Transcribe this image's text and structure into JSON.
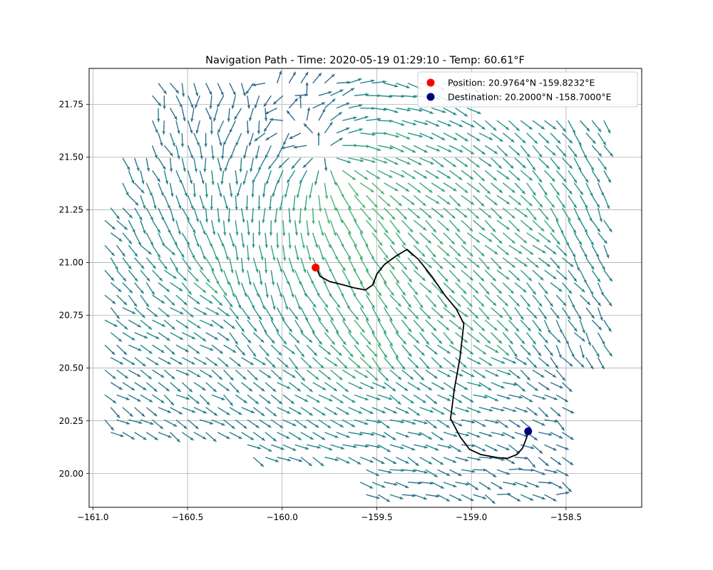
{
  "chart_data": {
    "type": "quiver",
    "title": "Navigation Path  - Time: 2020-05-19 01:29:10  - Temp: 60.61°F",
    "xlabel": "",
    "ylabel": "",
    "xlim": [
      -161.02,
      -158.1
    ],
    "ylim": [
      19.84,
      21.92
    ],
    "x_ticks": [
      {
        "value": -161.0,
        "label": "−161.0"
      },
      {
        "value": -160.5,
        "label": "−160.5"
      },
      {
        "value": -160.0,
        "label": "−160.0"
      },
      {
        "value": -159.5,
        "label": "−159.5"
      },
      {
        "value": -159.0,
        "label": "−159.0"
      },
      {
        "value": -158.5,
        "label": "−158.5"
      }
    ],
    "y_ticks": [
      {
        "value": 20.0,
        "label": "20.00"
      },
      {
        "value": 20.25,
        "label": "20.25"
      },
      {
        "value": 20.5,
        "label": "20.50"
      },
      {
        "value": 20.75,
        "label": "20.75"
      },
      {
        "value": 21.0,
        "label": "21.00"
      },
      {
        "value": 21.25,
        "label": "21.25"
      },
      {
        "value": 21.5,
        "label": "21.50"
      },
      {
        "value": 21.75,
        "label": "21.75"
      }
    ],
    "grid": true,
    "legend_position": "top-right",
    "colormap": "viridis",
    "path": {
      "color": "#000000",
      "points": [
        [
          -159.82,
          20.976
        ],
        [
          -159.8,
          20.935
        ],
        [
          -159.75,
          20.91
        ],
        [
          -159.68,
          20.895
        ],
        [
          -159.62,
          20.88
        ],
        [
          -159.56,
          20.87
        ],
        [
          -159.52,
          20.895
        ],
        [
          -159.5,
          20.945
        ],
        [
          -159.46,
          20.99
        ],
        [
          -159.4,
          21.03
        ],
        [
          -159.34,
          21.062
        ],
        [
          -159.28,
          21.015
        ],
        [
          -159.21,
          20.935
        ],
        [
          -159.14,
          20.845
        ],
        [
          -159.08,
          20.78
        ],
        [
          -159.04,
          20.71
        ],
        [
          -159.06,
          20.55
        ],
        [
          -159.09,
          20.4
        ],
        [
          -159.11,
          20.26
        ],
        [
          -159.06,
          20.175
        ],
        [
          -159.01,
          20.115
        ],
        [
          -158.95,
          20.09
        ],
        [
          -158.86,
          20.075
        ],
        [
          -158.81,
          20.072
        ],
        [
          -158.76,
          20.09
        ],
        [
          -158.73,
          20.12
        ],
        [
          -158.71,
          20.165
        ],
        [
          -158.7,
          20.2
        ]
      ]
    },
    "series": [
      {
        "name": "Position: 20.9764°N  -159.8232°E",
        "type": "scatter",
        "color": "#ff0000",
        "x": -159.8232,
        "y": 20.9764
      },
      {
        "name": "Destination: 20.2000°N  -158.7000°E",
        "type": "scatter",
        "color": "#00007f",
        "x": -158.7,
        "y": 20.2
      }
    ],
    "vector_field": {
      "lon_range": [
        -161.0,
        -158.3
      ],
      "lat_range": [
        19.9,
        21.85
      ],
      "speed_scale": [
        0,
        1
      ],
      "flow_features": [
        {
          "kind": "source",
          "x": -159.75,
          "y": 21.47,
          "strength": 1.0
        },
        {
          "kind": "convergence",
          "x": -160.35,
          "y": 20.9,
          "strength": 0.6
        },
        {
          "kind": "convergence",
          "x": -159.55,
          "y": 20.5,
          "strength": 0.55
        },
        {
          "kind": "convergence",
          "x": -158.85,
          "y": 20.6,
          "strength": 0.55
        },
        {
          "kind": "convergence",
          "x": -158.6,
          "y": 21.15,
          "strength": 0.5
        }
      ]
    }
  }
}
